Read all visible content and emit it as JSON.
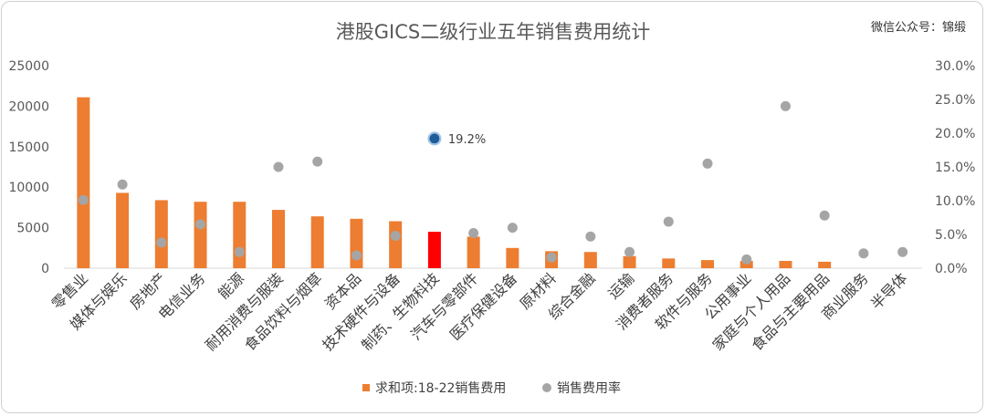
{
  "chart_data": {
    "type": "bar",
    "title": "港股GICS二级行业五年销售费用统计",
    "watermark": "微信公众号：锦缎",
    "categories": [
      "零售业",
      "媒体与娱乐",
      "房地产",
      "电信业务",
      "能源",
      "耐用消费与服装",
      "食品饮料与烟草",
      "资本品",
      "技术硬件与设备",
      "制药、生物科技",
      "汽车与零部件",
      "医疗保健设备",
      "原材料",
      "综合金融",
      "运输",
      "消费者服务",
      "软件与服务",
      "公用事业",
      "家庭与个人用品",
      "食品与主要用品",
      "商业服务",
      "半导体"
    ],
    "series": [
      {
        "name": "求和项:18-22销售费用",
        "axis": "left",
        "type": "bar",
        "values": [
          21100,
          9300,
          8400,
          8200,
          8200,
          7200,
          6400,
          6100,
          5800,
          4500,
          3900,
          2500,
          2100,
          2000,
          1500,
          1200,
          1000,
          900,
          900,
          800,
          0,
          0
        ]
      },
      {
        "name": "销售费用率",
        "axis": "right",
        "type": "scatter",
        "values": [
          0.101,
          0.124,
          0.038,
          0.065,
          0.024,
          0.15,
          0.158,
          0.019,
          0.048,
          0.192,
          0.052,
          0.06,
          0.016,
          0.047,
          0.024,
          0.069,
          0.155,
          0.013,
          0.24,
          0.078,
          0.022,
          0.024
        ]
      }
    ],
    "y_left": {
      "min": 0,
      "max": 25000,
      "ticks": [
        "0",
        "5000",
        "10000",
        "15000",
        "20000",
        "25000"
      ]
    },
    "y_right": {
      "min": 0,
      "max": 0.3,
      "ticks": [
        "0.0%",
        "5.0%",
        "10.0%",
        "15.0%",
        "20.0%",
        "25.0%",
        "30.0%"
      ]
    },
    "highlight_index": 9,
    "annotation": {
      "index": 9,
      "text": "19.2%"
    },
    "legend_placement": "bottom-center",
    "grid": false,
    "colors": {
      "bar": "#ED7D31",
      "bar_highlight": "#FF0000",
      "dot": "#A5A5A5",
      "dot_highlight": "#1F5C99",
      "axis_text": "#595959"
    }
  }
}
